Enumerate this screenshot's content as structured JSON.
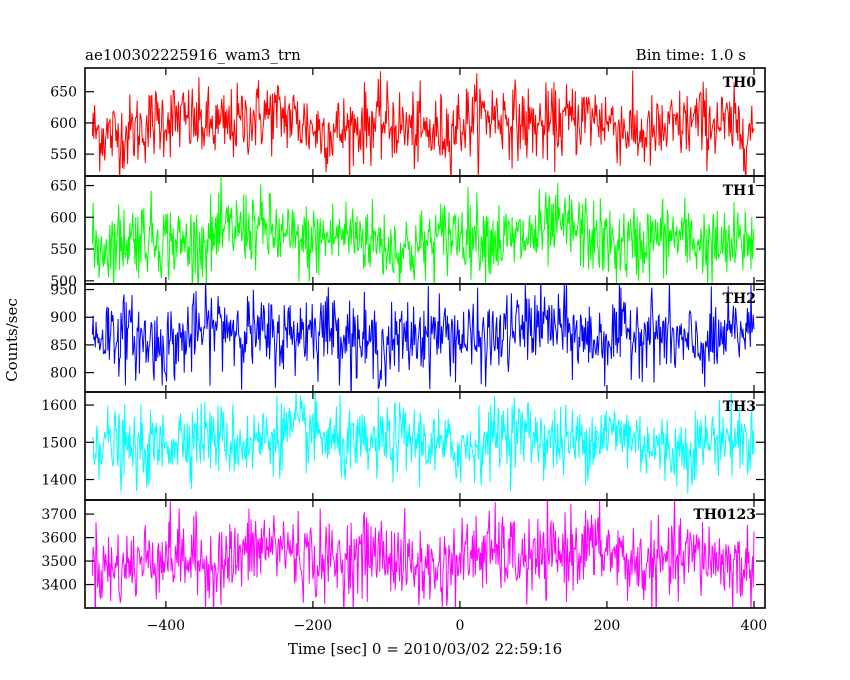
{
  "header": {
    "title": "ae100302225916_wam3_trn",
    "bin_time": "Bin time: 1.0 s"
  },
  "chart_data": {
    "type": "line",
    "xlabel": "Time [sec] 0 = 2010/03/02 22:59:16",
    "ylabel": "Counts/sec",
    "xlim": [
      -510,
      415
    ],
    "x_ticks": [
      -400,
      -200,
      0,
      200,
      400
    ],
    "x_ticklabels": [
      "−400",
      "−200",
      "0",
      "200",
      "400"
    ],
    "x_data_range": [
      -500,
      400
    ],
    "bin_time_s": 1.0,
    "panels": [
      {
        "name": "TH0",
        "color": "#ff0000",
        "ylim": [
          515,
          688
        ],
        "yticks": [
          550,
          600,
          650
        ],
        "mean": 598,
        "spread": 30
      },
      {
        "name": "TH1",
        "color": "#00ff00",
        "ylim": [
          495,
          665
        ],
        "yticks": [
          500,
          550,
          600,
          650
        ],
        "mean": 567,
        "spread": 30
      },
      {
        "name": "TH2",
        "color": "#0000ff",
        "ylim": [
          765,
          960
        ],
        "yticks": [
          800,
          850,
          900,
          950
        ],
        "mean": 868,
        "spread": 35
      },
      {
        "name": "TH3",
        "color": "#00ffff",
        "ylim": [
          1345,
          1635
        ],
        "yticks": [
          1400,
          1500,
          1600
        ],
        "mean": 1505,
        "spread": 48
      },
      {
        "name": "TH0123",
        "color": "#ff00ff",
        "ylim": [
          3300,
          3760
        ],
        "yticks": [
          3400,
          3500,
          3600,
          3700
        ],
        "mean": 3515,
        "spread": 85
      }
    ]
  }
}
